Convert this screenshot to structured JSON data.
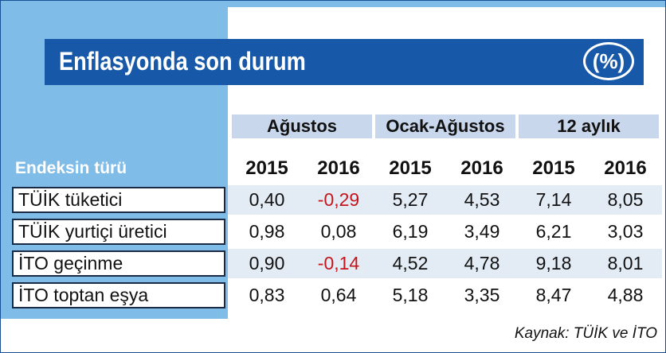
{
  "title": "Enflasyonda son durum",
  "unit": "(%)",
  "table": {
    "groups": [
      "Ağustos",
      "Ocak-Ağustos",
      "12 aylık"
    ],
    "row_header": "Endeksin türü",
    "years": [
      "2015",
      "2016",
      "2015",
      "2016",
      "2015",
      "2016"
    ],
    "rows": [
      {
        "label": "TÜİK tüketici",
        "cells": [
          "0,40",
          "-0,29",
          "5,27",
          "4,53",
          "7,14",
          "8,05"
        ]
      },
      {
        "label": "TÜİK yurtiçi üretici",
        "cells": [
          "0,98",
          "0,08",
          "6,19",
          "3,49",
          "6,21",
          "3,03"
        ]
      },
      {
        "label": "İTO geçinme",
        "cells": [
          "0,90",
          "-0,14",
          "4,52",
          "4,78",
          "9,18",
          "8,01"
        ]
      },
      {
        "label": "İTO toptan eşya",
        "cells": [
          "0,83",
          "0,64",
          "5,18",
          "3,35",
          "8,47",
          "4,88"
        ]
      }
    ]
  },
  "source": "Kaynak: TÜİK ve İTO"
}
